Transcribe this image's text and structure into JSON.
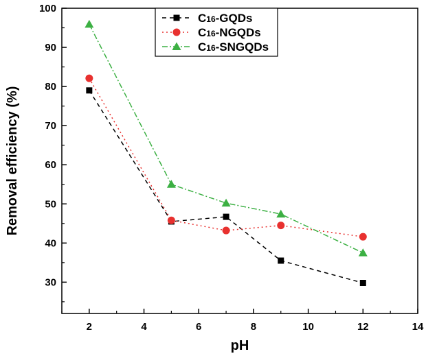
{
  "chart_data": {
    "type": "line",
    "xlabel": "pH",
    "ylabel": "Removal efficiency (%)",
    "xlim": [
      1,
      14
    ],
    "ylim": [
      22,
      100
    ],
    "xticks": [
      2,
      4,
      6,
      8,
      10,
      12,
      14
    ],
    "yticks": [
      30,
      40,
      50,
      60,
      70,
      80,
      90,
      100
    ],
    "legend_position": "top-center",
    "grid": false,
    "series": [
      {
        "name_prefix": "C",
        "name_sub": "16",
        "name_suffix": "-GQDs",
        "color": "#000000",
        "marker": "square",
        "dash": "6,5",
        "x": [
          2,
          5,
          7,
          9,
          12
        ],
        "y": [
          79,
          45.5,
          46.7,
          35.5,
          29.8
        ]
      },
      {
        "name_prefix": "C",
        "name_sub": "16",
        "name_suffix": "-NGQDs",
        "color": "#e8312f",
        "marker": "circle",
        "dash": "2,4",
        "x": [
          2,
          5,
          7,
          9,
          12
        ],
        "y": [
          82.1,
          45.8,
          43.2,
          44.5,
          41.6
        ]
      },
      {
        "name_prefix": "C",
        "name_sub": "16",
        "name_suffix": "-SNGQDs",
        "color": "#3cb043",
        "marker": "triangle",
        "dash": "8,3,2,3",
        "x": [
          2,
          5,
          7,
          9,
          12
        ],
        "y": [
          95.9,
          55,
          50.2,
          47.4,
          37.5
        ]
      }
    ]
  }
}
